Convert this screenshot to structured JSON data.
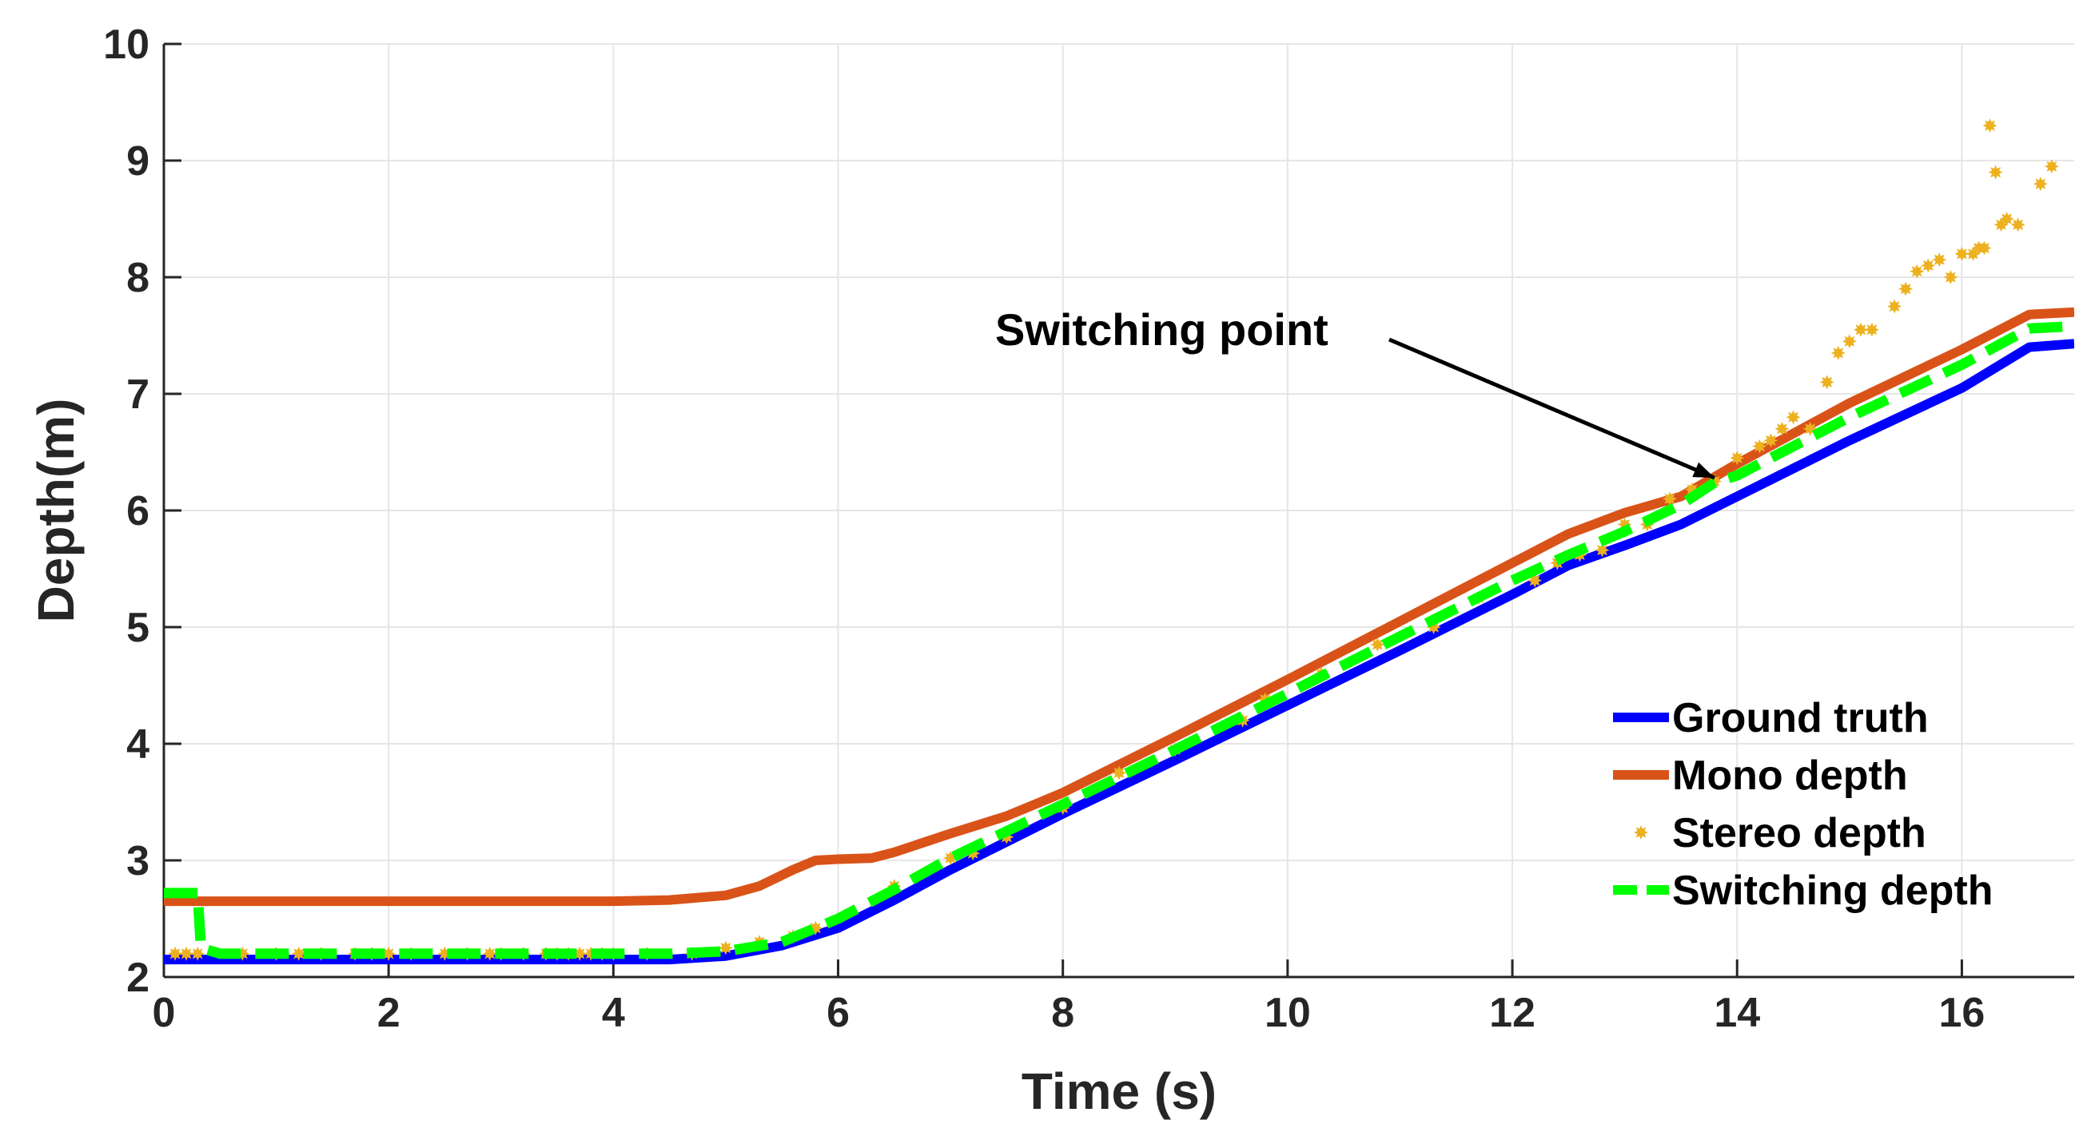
{
  "chart_data": {
    "type": "line",
    "title": "",
    "xlabel": "Time (s)",
    "ylabel": "Depth(m)",
    "xlim": [
      0,
      17
    ],
    "ylim": [
      2,
      10
    ],
    "xticks": [
      0,
      2,
      4,
      6,
      8,
      10,
      12,
      14,
      16
    ],
    "yticks": [
      2,
      3,
      4,
      5,
      6,
      7,
      8,
      9,
      10
    ],
    "grid": true,
    "legend_position": "lower-right",
    "annotation": {
      "text": "Switching point",
      "x": 13.8,
      "y": 6.28
    },
    "series": [
      {
        "name": "Ground truth",
        "color": "#0000ff",
        "style": "solid",
        "x": [
          0,
          4.5,
          5,
          5.5,
          6,
          6.5,
          7,
          8,
          9,
          10,
          11,
          12,
          12.5,
          13,
          13.5,
          14,
          15,
          16,
          16.6,
          17
        ],
        "y": [
          2.15,
          2.15,
          2.18,
          2.27,
          2.42,
          2.66,
          2.92,
          3.4,
          3.86,
          4.33,
          4.8,
          5.28,
          5.53,
          5.7,
          5.88,
          6.12,
          6.6,
          7.05,
          7.4,
          7.43
        ]
      },
      {
        "name": "Mono depth",
        "color": "#d95319",
        "style": "solid",
        "x": [
          0,
          4,
          4.5,
          5,
          5.3,
          5.6,
          5.8,
          6,
          6.3,
          6.5,
          7,
          7.5,
          8,
          9,
          10,
          11,
          12,
          12.5,
          13,
          13.5,
          14,
          15,
          16,
          16.6,
          17
        ],
        "y": [
          2.65,
          2.65,
          2.66,
          2.7,
          2.78,
          2.92,
          3.0,
          3.01,
          3.02,
          3.07,
          3.23,
          3.38,
          3.58,
          4.06,
          4.55,
          5.05,
          5.55,
          5.8,
          5.98,
          6.12,
          6.4,
          6.92,
          7.38,
          7.68,
          7.7
        ]
      },
      {
        "name": "Stereo depth",
        "color": "#edb120",
        "style": "markers",
        "x": [
          0.1,
          0.2,
          0.3,
          0.7,
          1.0,
          1.2,
          1.4,
          1.7,
          1.85,
          2.0,
          2.2,
          2.5,
          2.7,
          2.9,
          3.0,
          3.2,
          3.4,
          3.5,
          3.6,
          3.7,
          3.8,
          3.9,
          4.0,
          4.3,
          4.7,
          5.0,
          5.3,
          5.6,
          5.8,
          6.5,
          7.0,
          7.2,
          7.5,
          8.0,
          8.5,
          9.0,
          9.6,
          9.8,
          10.3,
          10.8,
          11.3,
          11.7,
          12.2,
          12.4,
          12.6,
          12.8,
          13.0,
          13.2,
          13.4,
          13.6,
          13.8,
          14.0,
          14.2,
          14.3,
          14.4,
          14.5,
          14.65,
          14.8,
          14.9,
          15.0,
          15.1,
          15.2,
          15.4,
          15.5,
          15.6,
          15.7,
          15.8,
          15.9,
          16.0,
          16.1,
          16.15,
          16.2,
          16.25,
          16.3,
          16.35,
          16.4,
          16.5,
          16.7,
          16.8
        ],
        "y": [
          2.2,
          2.2,
          2.2,
          2.2,
          2.2,
          2.2,
          2.2,
          2.2,
          2.2,
          2.2,
          2.2,
          2.2,
          2.2,
          2.2,
          2.2,
          2.2,
          2.2,
          2.2,
          2.2,
          2.2,
          2.2,
          2.2,
          2.2,
          2.2,
          2.2,
          2.25,
          2.3,
          2.35,
          2.42,
          2.78,
          3.02,
          3.06,
          3.2,
          3.45,
          3.75,
          3.95,
          4.2,
          4.38,
          4.6,
          4.85,
          5.0,
          5.25,
          5.4,
          5.55,
          5.62,
          5.66,
          5.88,
          5.88,
          6.1,
          6.18,
          6.25,
          6.45,
          6.55,
          6.6,
          6.7,
          6.8,
          6.7,
          7.1,
          7.35,
          7.45,
          7.55,
          7.55,
          7.75,
          7.9,
          8.05,
          8.1,
          8.15,
          8.0,
          8.2,
          8.2,
          8.25,
          8.25,
          9.3,
          8.9,
          8.45,
          8.5,
          8.45,
          8.8,
          8.95
        ]
      },
      {
        "name": "Switching depth",
        "color": "#00ff00",
        "style": "dashed",
        "x": [
          0,
          0.3,
          0.33,
          0.5,
          4.5,
          5,
          5.5,
          6,
          6.5,
          7,
          8,
          9,
          10,
          11,
          12,
          12.5,
          13,
          13.5,
          13.8,
          14,
          15,
          16,
          16.6,
          17
        ],
        "y": [
          2.72,
          2.72,
          2.25,
          2.2,
          2.2,
          2.22,
          2.3,
          2.5,
          2.75,
          3.02,
          3.48,
          3.95,
          4.43,
          4.92,
          5.4,
          5.62,
          5.82,
          6.05,
          6.24,
          6.3,
          6.8,
          7.25,
          7.56,
          7.58
        ]
      }
    ]
  }
}
